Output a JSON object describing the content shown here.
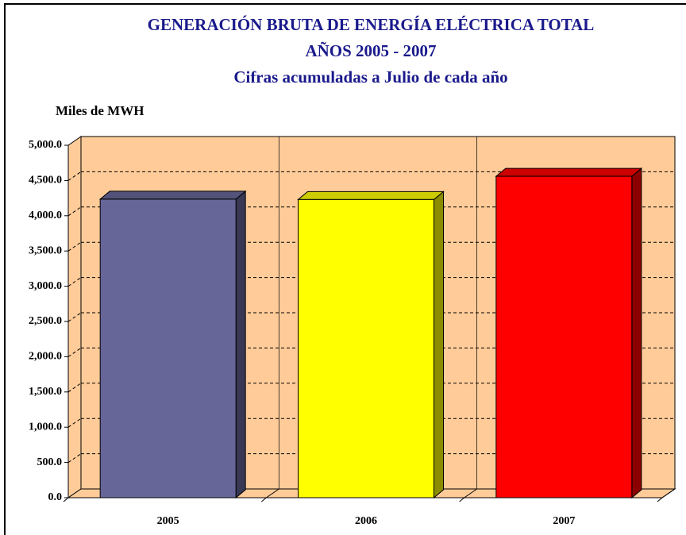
{
  "chart_data": {
    "type": "bar",
    "title": [
      "GENERACIÓN BRUTA DE ENERGÍA ELÉCTRICA TOTAL",
      "AÑOS 2005 - 2007",
      "Cifras acumuladas a  Julio  de cada año"
    ],
    "y_label": "Miles de MWH",
    "categories": [
      "2005",
      "2006",
      "2007"
    ],
    "values": [
      4235,
      4230,
      4560
    ],
    "colors": [
      "#666699",
      "#ffff00",
      "#ff0000"
    ],
    "ylim": [
      0,
      5000
    ],
    "yticks": [
      {
        "value": 0,
        "label": "0.0"
      },
      {
        "value": 500,
        "label": "500.0"
      },
      {
        "value": 1000,
        "label": "1,000.0"
      },
      {
        "value": 1500,
        "label": "1,500.0"
      },
      {
        "value": 2000,
        "label": "2,000.0"
      },
      {
        "value": 2500,
        "label": "2,500.0"
      },
      {
        "value": 3000,
        "label": "3,000.0"
      },
      {
        "value": 3500,
        "label": "3,500.0"
      },
      {
        "value": 4000,
        "label": "4,000.0"
      },
      {
        "value": 4500,
        "label": "4,500.0"
      },
      {
        "value": 5000,
        "label": "5,000.0"
      }
    ],
    "grid": true
  }
}
